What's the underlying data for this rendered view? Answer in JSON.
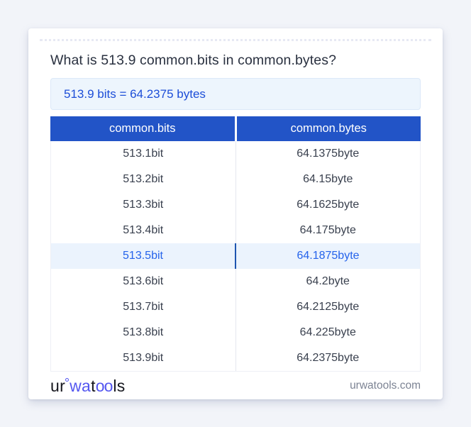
{
  "title": "What is 513.9 common.bits in common.bytes?",
  "answer": {
    "text": "513.9 bits = 64.2375 bytes"
  },
  "table": {
    "headers": [
      "common.bits",
      "common.bytes"
    ],
    "rows": [
      {
        "bits": "513.1bit",
        "bytes": "64.1375byte",
        "highlighted": false
      },
      {
        "bits": "513.2bit",
        "bytes": "64.15byte",
        "highlighted": false
      },
      {
        "bits": "513.3bit",
        "bytes": "64.1625byte",
        "highlighted": false
      },
      {
        "bits": "513.4bit",
        "bytes": "64.175byte",
        "highlighted": false
      },
      {
        "bits": "513.5bit",
        "bytes": "64.1875byte",
        "highlighted": true
      },
      {
        "bits": "513.6bit",
        "bytes": "64.2byte",
        "highlighted": false
      },
      {
        "bits": "513.7bit",
        "bytes": "64.2125byte",
        "highlighted": false
      },
      {
        "bits": "513.8bit",
        "bytes": "64.225byte",
        "highlighted": false
      },
      {
        "bits": "513.9bit",
        "bytes": "64.2375byte",
        "highlighted": false
      }
    ]
  },
  "footer": {
    "logo": {
      "part1": "ur",
      "part2": "wa",
      "part3": "t",
      "part4": "oo",
      "part5": "ls"
    },
    "site": "urwatools.com"
  },
  "colors": {
    "page_background": "#f2f4f9",
    "card_background": "#ffffff",
    "header_blue": "#2254c7",
    "answer_box_background": "#edf5fd",
    "answer_box_border": "#dbe8f8",
    "answer_text_blue": "#1d4ed8",
    "highlight_row_background": "#ebf3fd",
    "highlight_text_blue": "#2563eb",
    "body_text": "#39404e",
    "logo_indigo": "#5457f0",
    "site_text_gray": "#7d8494"
  }
}
